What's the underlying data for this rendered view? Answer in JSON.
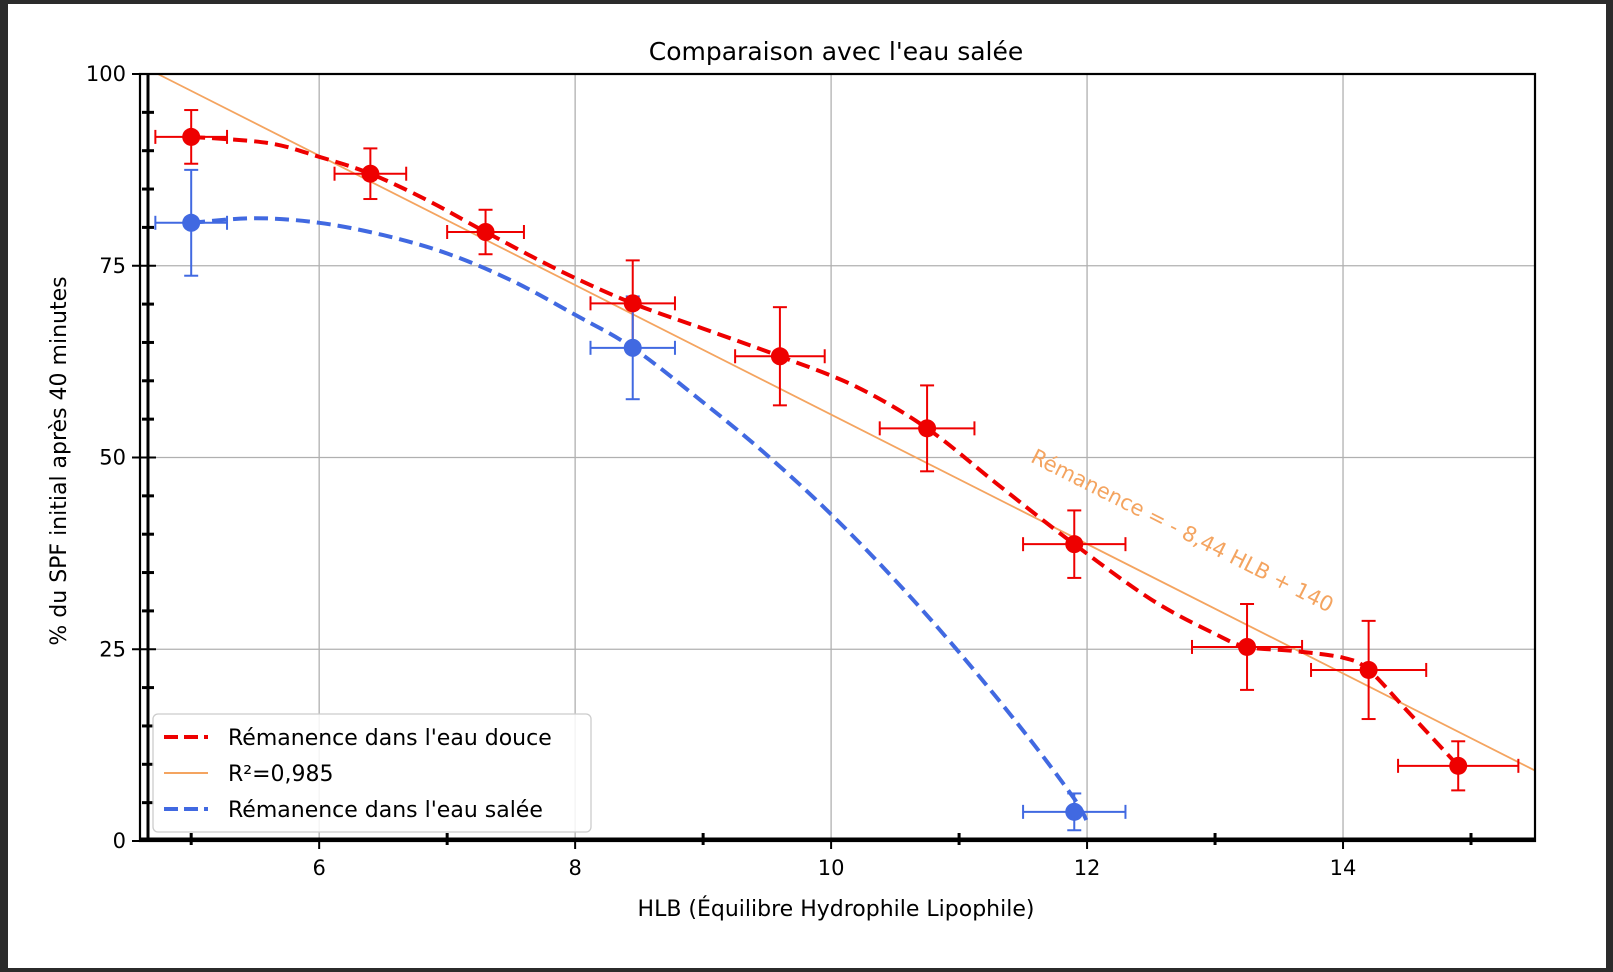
{
  "chart_data": {
    "type": "scatter",
    "title": "Comparaison avec l'eau salée",
    "xlabel": "HLB (Équilibre Hydrophile Lipophile)",
    "ylabel": "% du SPF initial après 40 minutes",
    "xlim": [
      4.6,
      15.5
    ],
    "ylim": [
      0,
      100
    ],
    "xticks": [
      6,
      8,
      10,
      12,
      14
    ],
    "yticks": [
      0,
      25,
      50,
      75,
      100
    ],
    "xminor": [
      5,
      7,
      9,
      11,
      13,
      15
    ],
    "grid": true,
    "legend_position": "lower-left",
    "series": [
      {
        "name": "Rémanence dans l'eau douce",
        "color": "#ee0000",
        "style": "dashed",
        "points": [
          {
            "x": 5.0,
            "y": 91.8,
            "xerr": 0.28,
            "yerr": 3.5
          },
          {
            "x": 6.4,
            "y": 87.0,
            "xerr": 0.28,
            "yerr": 3.3
          },
          {
            "x": 7.3,
            "y": 79.4,
            "xerr": 0.3,
            "yerr": 2.9
          },
          {
            "x": 8.45,
            "y": 70.1,
            "xerr": 0.33,
            "yerr": 5.6
          },
          {
            "x": 9.6,
            "y": 63.2,
            "xerr": 0.35,
            "yerr": 6.4
          },
          {
            "x": 10.75,
            "y": 53.8,
            "xerr": 0.37,
            "yerr": 5.6
          },
          {
            "x": 11.9,
            "y": 38.7,
            "xerr": 0.4,
            "yerr": 4.4
          },
          {
            "x": 13.25,
            "y": 25.3,
            "xerr": 0.43,
            "yerr": 5.6
          },
          {
            "x": 14.2,
            "y": 22.3,
            "xerr": 0.45,
            "yerr": 6.4
          },
          {
            "x": 14.9,
            "y": 9.8,
            "xerr": 0.47,
            "yerr": 3.2
          }
        ],
        "curve": [
          [
            5.0,
            91.8
          ],
          [
            5.6,
            91.0
          ],
          [
            6.0,
            89.2
          ],
          [
            6.4,
            87.0
          ],
          [
            6.85,
            83.5
          ],
          [
            7.3,
            79.4
          ],
          [
            7.9,
            74.2
          ],
          [
            8.45,
            70.1
          ],
          [
            9.0,
            66.8
          ],
          [
            9.6,
            63.2
          ],
          [
            10.2,
            59.2
          ],
          [
            10.75,
            53.8
          ],
          [
            11.3,
            46.5
          ],
          [
            11.9,
            38.7
          ],
          [
            12.5,
            31.5
          ],
          [
            13.0,
            27.0
          ],
          [
            13.25,
            25.3
          ],
          [
            13.6,
            24.8
          ],
          [
            14.0,
            23.9
          ],
          [
            14.2,
            22.3
          ],
          [
            14.5,
            17.0
          ],
          [
            14.9,
            9.8
          ]
        ]
      },
      {
        "name": "R²=0,985",
        "color": "#f4a460",
        "style": "solid",
        "slope": -8.44,
        "intercept": 140
      },
      {
        "name": "Rémanence dans l'eau salée",
        "color": "#4169e1",
        "style": "dashed",
        "points": [
          {
            "x": 5.0,
            "y": 80.6,
            "xerr": 0.28,
            "yerr": 6.9
          },
          {
            "x": 8.45,
            "y": 64.3,
            "xerr": 0.33,
            "yerr": 6.7
          },
          {
            "x": 11.9,
            "y": 3.8,
            "xerr": 0.4,
            "yerr": 2.4
          }
        ],
        "curve": [
          [
            5.0,
            80.6
          ],
          [
            5.5,
            81.2
          ],
          [
            6.0,
            80.6
          ],
          [
            6.5,
            79.0
          ],
          [
            7.0,
            76.6
          ],
          [
            7.5,
            73.1
          ],
          [
            8.0,
            68.6
          ],
          [
            8.45,
            64.3
          ],
          [
            9.0,
            57.2
          ],
          [
            9.5,
            50.3
          ],
          [
            10.0,
            42.6
          ],
          [
            10.5,
            34.0
          ],
          [
            11.0,
            24.6
          ],
          [
            11.5,
            14.4
          ],
          [
            11.9,
            5.5
          ],
          [
            12.0,
            2.5
          ]
        ]
      }
    ],
    "annotation": {
      "text": "Rémanence = - 8,44 HLB + 140",
      "color": "#f4a460",
      "anchor_x": 11.55,
      "anchor_y": 49.5
    }
  }
}
